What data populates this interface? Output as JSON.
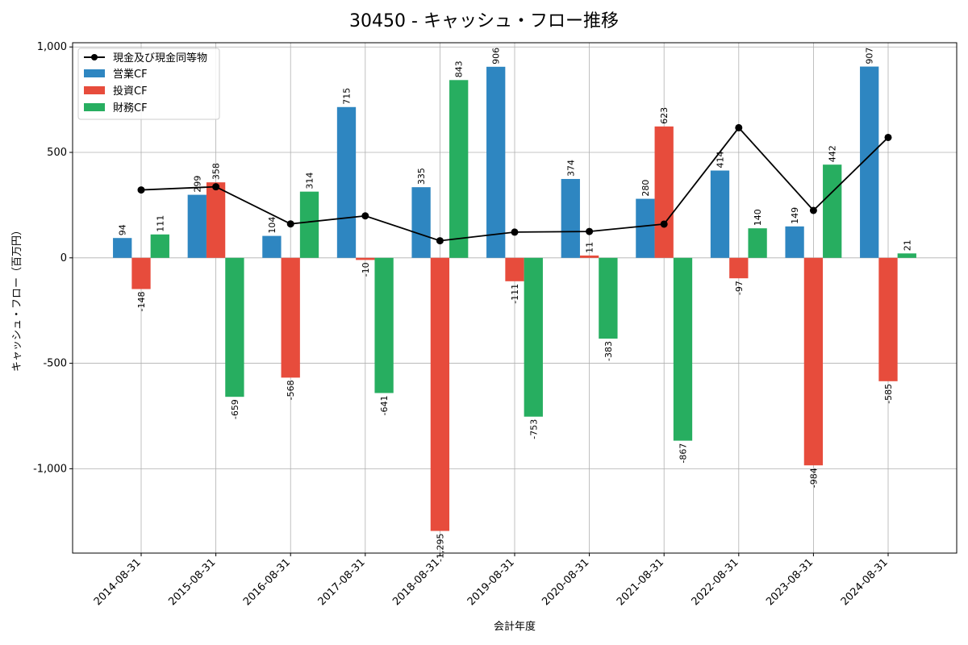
{
  "chart_data": {
    "type": "bar",
    "title": "30450 - キャッシュ・フロー推移",
    "xlabel": "会計年度",
    "ylabel": "キャッシュ・フロー（百万円）",
    "ylim": [
      -1400,
      1020
    ],
    "yticks": [
      -1000,
      -500,
      0,
      500,
      1000
    ],
    "ytick_labels": [
      "-1,000",
      "-500",
      "0",
      "500",
      "1,000"
    ],
    "grid": true,
    "legend_position": "top-left",
    "categories": [
      "2014-08-31",
      "2015-08-31",
      "2016-08-31",
      "2017-08-31",
      "2018-08-31",
      "2019-08-31",
      "2020-08-31",
      "2021-08-31",
      "2022-08-31",
      "2023-08-31",
      "2024-08-31"
    ],
    "series": [
      {
        "name": "営業CF",
        "type": "bar",
        "color": "#2e86c1",
        "values": [
          94,
          299,
          104,
          715,
          335,
          906,
          374,
          280,
          414,
          149,
          907
        ],
        "labels": [
          "94",
          "299",
          "104",
          "715",
          "335",
          "906",
          "374",
          "280",
          "414",
          "149",
          "907"
        ]
      },
      {
        "name": "投資CF",
        "type": "bar",
        "color": "#e74c3c",
        "values": [
          -148,
          358,
          -568,
          -10,
          -1295,
          -111,
          11,
          623,
          -97,
          -984,
          -585
        ],
        "labels": [
          "-148",
          "358",
          "-568",
          "-10",
          "-1,295",
          "-111",
          "11",
          "623",
          "-97",
          "-984",
          "-585"
        ]
      },
      {
        "name": "財務CF",
        "type": "bar",
        "color": "#27ae60",
        "values": [
          111,
          -659,
          314,
          -641,
          843,
          -753,
          -383,
          -867,
          140,
          442,
          21
        ],
        "labels": [
          "111",
          "-659",
          "314",
          "-641",
          "843",
          "-753",
          "-383",
          "-867",
          "140",
          "442",
          "21"
        ]
      },
      {
        "name": "現金及び現金同等物",
        "type": "line",
        "color": "#000000",
        "values": [
          322,
          337,
          161,
          199,
          81,
          122,
          125,
          160,
          617,
          225,
          571
        ]
      }
    ]
  }
}
